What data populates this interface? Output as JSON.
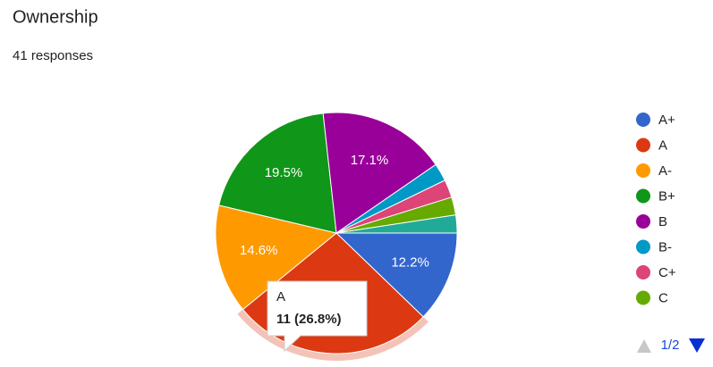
{
  "chart_data": {
    "type": "pie",
    "title": "Ownership",
    "subtitle": "41 responses",
    "categories": [
      "A+",
      "A",
      "A-",
      "B+",
      "B",
      "B-",
      "C+",
      "C",
      null
    ],
    "values": [
      12.2,
      26.8,
      14.6,
      19.5,
      17.1,
      2.4,
      2.4,
      2.4,
      2.4
    ],
    "value_labels": [
      "12.2%",
      null,
      "14.6%",
      "19.5%",
      "17.1%",
      null,
      null,
      null,
      null
    ],
    "colors": [
      "#3366cc",
      "#dc3912",
      "#ff9900",
      "#109618",
      "#990099",
      "#0099c6",
      "#dd4477",
      "#66aa00",
      "#22aa99"
    ],
    "legend": "right",
    "legend_page": "1/2",
    "selected": 1,
    "tooltip": {
      "title": "A",
      "body": "11 (26.8%)"
    }
  }
}
